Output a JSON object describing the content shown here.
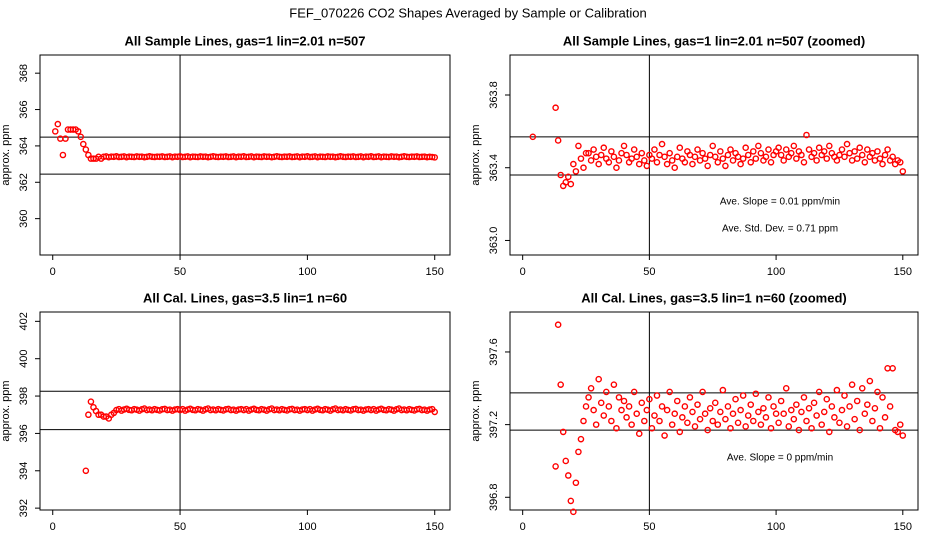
{
  "title": "FEF_070226  CO2 Shapes Averaged by Sample or Calibration",
  "chart_data": [
    {
      "type": "scatter",
      "title": "All Sample Lines, gas=1 lin=2.01 n=507",
      "ylabel": "approx. ppm",
      "color": "#ff0000",
      "xlim": [
        -5,
        156
      ],
      "ylim": [
        358,
        369
      ],
      "xticks": [
        0,
        50,
        100,
        150
      ],
      "yticks": [
        360,
        362,
        364,
        366,
        368
      ],
      "hlines": [
        364.48,
        362.45
      ],
      "vlines": [
        50
      ],
      "annotations": [],
      "x": [
        1,
        2,
        3,
        4,
        5,
        6,
        7,
        8,
        9,
        10,
        11,
        12,
        13,
        14,
        15,
        16,
        17,
        18,
        19,
        20,
        21,
        22,
        23,
        24,
        25,
        26,
        27,
        28,
        29,
        30,
        31,
        32,
        33,
        34,
        35,
        36,
        37,
        38,
        39,
        40,
        41,
        42,
        43,
        44,
        45,
        46,
        47,
        48,
        49,
        50,
        51,
        52,
        53,
        54,
        55,
        56,
        57,
        58,
        59,
        60,
        61,
        62,
        63,
        64,
        65,
        66,
        67,
        68,
        69,
        70,
        71,
        72,
        73,
        74,
        75,
        76,
        77,
        78,
        79,
        80,
        81,
        82,
        83,
        84,
        85,
        86,
        87,
        88,
        89,
        90,
        91,
        92,
        93,
        94,
        95,
        96,
        97,
        98,
        99,
        100,
        101,
        102,
        103,
        104,
        105,
        106,
        107,
        108,
        109,
        110,
        111,
        112,
        113,
        114,
        115,
        116,
        117,
        118,
        119,
        120,
        121,
        122,
        123,
        124,
        125,
        126,
        127,
        128,
        129,
        130,
        131,
        132,
        133,
        134,
        135,
        136,
        137,
        138,
        139,
        140,
        141,
        142,
        143,
        144,
        145,
        146,
        147,
        148,
        149,
        150
      ],
      "values": [
        364.8,
        365.2,
        364.4,
        363.5,
        364.4,
        364.9,
        364.9,
        364.9,
        364.9,
        364.8,
        364.5,
        364.1,
        363.8,
        363.5,
        363.3,
        363.3,
        363.3,
        363.4,
        363.3,
        363.4,
        363.42,
        363.38,
        363.41,
        363.4,
        363.43,
        363.39,
        363.4,
        363.42,
        363.38,
        363.41,
        363.4,
        363.39,
        363.42,
        363.4,
        363.41,
        363.38,
        363.4,
        363.43,
        363.4,
        363.39,
        363.41,
        363.4,
        363.42,
        363.39,
        363.4,
        363.42,
        363.38,
        363.41,
        363.4,
        363.43,
        363.39,
        363.4,
        363.42,
        363.38,
        363.41,
        363.4,
        363.39,
        363.42,
        363.4,
        363.41,
        363.38,
        363.4,
        363.43,
        363.4,
        363.39,
        363.41,
        363.4,
        363.42,
        363.39,
        363.4,
        363.42,
        363.38,
        363.41,
        363.4,
        363.43,
        363.39,
        363.4,
        363.42,
        363.38,
        363.41,
        363.4,
        363.39,
        363.42,
        363.4,
        363.41,
        363.38,
        363.4,
        363.43,
        363.4,
        363.39,
        363.41,
        363.4,
        363.42,
        363.39,
        363.4,
        363.42,
        363.38,
        363.41,
        363.4,
        363.43,
        363.39,
        363.4,
        363.42,
        363.38,
        363.41,
        363.4,
        363.39,
        363.42,
        363.4,
        363.41,
        363.38,
        363.4,
        363.43,
        363.4,
        363.39,
        363.41,
        363.4,
        363.42,
        363.39,
        363.4,
        363.42,
        363.38,
        363.41,
        363.4,
        363.43,
        363.39,
        363.4,
        363.42,
        363.38,
        363.41,
        363.4,
        363.39,
        363.42,
        363.4,
        363.41,
        363.38,
        363.4,
        363.43,
        363.4,
        363.39,
        363.41,
        363.4,
        363.42,
        363.39,
        363.4,
        363.41,
        363.38,
        363.4,
        363.39,
        363.37
      ]
    },
    {
      "type": "scatter",
      "title": "All Sample Lines, gas=1 lin=2.01 n=507 (zoomed)",
      "ylabel": "approx. ppm",
      "color": "#ff0000",
      "xlim": [
        -5,
        156
      ],
      "ylim": [
        362.92,
        364.02
      ],
      "xticks": [
        0,
        50,
        100,
        150
      ],
      "yticks": [
        {
          "value": 363.0,
          "label": "363.0"
        },
        363.4,
        363.8
      ],
      "hlines": [
        363.57,
        363.36
      ],
      "vlines": [
        50
      ],
      "annotations": [
        "Ave. Slope =  0.01  ppm/min",
        "Ave. Std. Dev. =  0.71  ppm"
      ],
      "x": [
        4,
        13,
        14,
        15,
        16,
        17,
        18,
        19,
        20,
        21,
        22,
        23,
        24,
        25,
        26,
        27,
        28,
        29,
        30,
        31,
        32,
        33,
        34,
        35,
        36,
        37,
        38,
        39,
        40,
        41,
        42,
        43,
        44,
        45,
        46,
        47,
        48,
        49,
        50,
        51,
        52,
        53,
        54,
        55,
        56,
        57,
        58,
        59,
        60,
        61,
        62,
        63,
        64,
        65,
        66,
        67,
        68,
        69,
        70,
        71,
        72,
        73,
        74,
        75,
        76,
        77,
        78,
        79,
        80,
        81,
        82,
        83,
        84,
        85,
        86,
        87,
        88,
        89,
        90,
        91,
        92,
        93,
        94,
        95,
        96,
        97,
        98,
        99,
        100,
        101,
        102,
        103,
        104,
        105,
        106,
        107,
        108,
        109,
        110,
        111,
        112,
        113,
        114,
        115,
        116,
        117,
        118,
        119,
        120,
        121,
        122,
        123,
        124,
        125,
        126,
        127,
        128,
        129,
        130,
        131,
        132,
        133,
        134,
        135,
        136,
        137,
        138,
        139,
        140,
        141,
        142,
        143,
        144,
        145,
        146,
        147,
        148,
        149,
        150
      ],
      "values": [
        363.57,
        363.73,
        363.55,
        363.36,
        363.3,
        363.32,
        363.35,
        363.31,
        363.42,
        363.38,
        363.52,
        363.45,
        363.4,
        363.48,
        363.48,
        363.44,
        363.5,
        363.46,
        363.42,
        363.47,
        363.51,
        363.45,
        363.43,
        363.49,
        363.46,
        363.4,
        363.44,
        363.48,
        363.52,
        363.47,
        363.43,
        363.45,
        363.5,
        363.46,
        363.42,
        363.48,
        363.44,
        363.41,
        363.47,
        363.45,
        363.5,
        363.43,
        363.47,
        363.53,
        363.46,
        363.42,
        363.48,
        363.44,
        363.4,
        363.46,
        363.51,
        363.45,
        363.43,
        363.49,
        363.47,
        363.42,
        363.46,
        363.5,
        363.44,
        363.48,
        363.45,
        363.41,
        363.47,
        363.52,
        363.46,
        363.43,
        363.49,
        363.45,
        363.41,
        363.47,
        363.5,
        363.44,
        363.48,
        363.46,
        363.42,
        363.45,
        363.51,
        363.47,
        363.43,
        363.49,
        363.45,
        363.52,
        363.48,
        363.44,
        363.46,
        363.5,
        363.43,
        363.47,
        363.49,
        363.51,
        363.47,
        363.44,
        363.5,
        363.46,
        363.48,
        363.52,
        363.45,
        363.49,
        363.47,
        363.43,
        363.58,
        363.5,
        363.46,
        363.48,
        363.44,
        363.51,
        363.47,
        363.49,
        363.45,
        363.52,
        363.48,
        363.46,
        363.44,
        363.47,
        363.5,
        363.46,
        363.53,
        363.48,
        363.44,
        363.49,
        363.45,
        363.51,
        363.47,
        363.43,
        363.5,
        363.46,
        363.48,
        363.44,
        363.49,
        363.45,
        363.42,
        363.47,
        363.5,
        363.44,
        363.46,
        363.42,
        363.44,
        363.43,
        363.38
      ]
    },
    {
      "type": "scatter",
      "title": "All Cal. Lines, gas=3.5 lin=1 n=60",
      "ylabel": "approx. ppm",
      "color": "#ff0000",
      "xlim": [
        -5,
        156
      ],
      "ylim": [
        391.9,
        402.5
      ],
      "xticks": [
        0,
        50,
        100,
        150
      ],
      "yticks": [
        392,
        394,
        396,
        398,
        400,
        402
      ],
      "hlines": [
        398.26,
        396.2
      ],
      "vlines": [
        50
      ],
      "annotations": [],
      "x": [
        13,
        14,
        15,
        16,
        17,
        18,
        19,
        20,
        21,
        22,
        23,
        24,
        25,
        26,
        27,
        28,
        29,
        30,
        31,
        32,
        33,
        34,
        35,
        36,
        37,
        38,
        39,
        40,
        41,
        42,
        43,
        44,
        45,
        46,
        47,
        48,
        49,
        50,
        51,
        52,
        53,
        54,
        55,
        56,
        57,
        58,
        59,
        60,
        61,
        62,
        63,
        64,
        65,
        66,
        67,
        68,
        69,
        70,
        71,
        72,
        73,
        74,
        75,
        76,
        77,
        78,
        79,
        80,
        81,
        82,
        83,
        84,
        85,
        86,
        87,
        88,
        89,
        90,
        91,
        92,
        93,
        94,
        95,
        96,
        97,
        98,
        99,
        100,
        101,
        102,
        103,
        104,
        105,
        106,
        107,
        108,
        109,
        110,
        111,
        112,
        113,
        114,
        115,
        116,
        117,
        118,
        119,
        120,
        121,
        122,
        123,
        124,
        125,
        126,
        127,
        128,
        129,
        130,
        131,
        132,
        133,
        134,
        135,
        136,
        137,
        138,
        139,
        140,
        141,
        142,
        143,
        144,
        145,
        146,
        147,
        148,
        149,
        150
      ],
      "values": [
        394.0,
        397.0,
        397.7,
        397.4,
        397.2,
        397.0,
        397.0,
        396.9,
        396.9,
        396.8,
        397.0,
        397.1,
        397.25,
        397.3,
        397.22,
        397.28,
        397.32,
        397.26,
        397.24,
        397.3,
        397.27,
        397.22,
        397.29,
        397.33,
        397.25,
        397.28,
        397.24,
        397.3,
        397.26,
        397.23,
        397.29,
        397.31,
        397.25,
        397.27,
        397.22,
        397.28,
        397.3,
        397.25,
        397.3,
        397.22,
        397.28,
        397.32,
        397.26,
        397.24,
        397.3,
        397.27,
        397.22,
        397.29,
        397.33,
        397.25,
        397.28,
        397.24,
        397.3,
        397.26,
        397.23,
        397.29,
        397.31,
        397.25,
        397.27,
        397.22,
        397.28,
        397.3,
        397.25,
        397.3,
        397.22,
        397.28,
        397.32,
        397.26,
        397.24,
        397.3,
        397.27,
        397.22,
        397.29,
        397.33,
        397.25,
        397.28,
        397.24,
        397.3,
        397.26,
        397.23,
        397.29,
        397.31,
        397.25,
        397.27,
        397.22,
        397.28,
        397.3,
        397.25,
        397.3,
        397.22,
        397.28,
        397.32,
        397.26,
        397.24,
        397.3,
        397.27,
        397.22,
        397.29,
        397.33,
        397.25,
        397.28,
        397.24,
        397.3,
        397.26,
        397.23,
        397.29,
        397.31,
        397.25,
        397.27,
        397.22,
        397.28,
        397.3,
        397.25,
        397.3,
        397.22,
        397.28,
        397.32,
        397.26,
        397.24,
        397.3,
        397.27,
        397.22,
        397.29,
        397.33,
        397.25,
        397.28,
        397.24,
        397.3,
        397.26,
        397.23,
        397.29,
        397.31,
        397.25,
        397.27,
        397.22,
        397.28,
        397.3,
        397.15
      ]
    },
    {
      "type": "scatter",
      "title": "All Cal. Lines, gas=3.5 lin=1 n=60 (zoomed)",
      "ylabel": "approx. ppm",
      "color": "#ff0000",
      "xlim": [
        -5,
        156
      ],
      "ylim": [
        396.73,
        397.82
      ],
      "xticks": [
        0,
        50,
        100,
        150
      ],
      "yticks": [
        396.8,
        397.2,
        397.6
      ],
      "hlines": [
        397.375,
        397.17
      ],
      "vlines": [
        50
      ],
      "annotations": [
        "Ave. Slope =  0  ppm/min"
      ],
      "x": [
        13,
        14,
        15,
        16,
        17,
        18,
        19,
        20,
        21,
        22,
        23,
        24,
        25,
        26,
        27,
        28,
        29,
        30,
        31,
        32,
        33,
        34,
        35,
        36,
        37,
        38,
        39,
        40,
        41,
        42,
        43,
        44,
        45,
        46,
        47,
        48,
        49,
        50,
        51,
        52,
        53,
        54,
        55,
        56,
        57,
        58,
        59,
        60,
        61,
        62,
        63,
        64,
        65,
        66,
        67,
        68,
        69,
        70,
        71,
        72,
        73,
        74,
        75,
        76,
        77,
        78,
        79,
        80,
        81,
        82,
        83,
        84,
        85,
        86,
        87,
        88,
        89,
        90,
        91,
        92,
        93,
        94,
        95,
        96,
        97,
        98,
        99,
        100,
        101,
        102,
        103,
        104,
        105,
        106,
        107,
        108,
        109,
        110,
        111,
        112,
        113,
        114,
        115,
        116,
        117,
        118,
        119,
        120,
        121,
        122,
        123,
        124,
        125,
        126,
        127,
        128,
        129,
        130,
        131,
        132,
        133,
        134,
        135,
        136,
        137,
        138,
        139,
        140,
        141,
        142,
        143,
        144,
        145,
        146,
        147,
        148,
        149,
        150
      ],
      "values": [
        396.97,
        397.75,
        397.42,
        397.16,
        397.0,
        396.92,
        396.78,
        396.72,
        396.88,
        397.05,
        397.12,
        397.22,
        397.3,
        397.35,
        397.4,
        397.28,
        397.2,
        397.45,
        397.32,
        397.25,
        397.38,
        397.3,
        397.22,
        397.42,
        397.18,
        397.35,
        397.28,
        397.33,
        397.24,
        397.3,
        397.2,
        397.38,
        397.26,
        397.15,
        397.32,
        397.22,
        397.28,
        397.34,
        397.18,
        397.25,
        397.36,
        397.22,
        397.3,
        397.14,
        397.28,
        397.38,
        397.2,
        397.26,
        397.33,
        397.16,
        397.24,
        397.3,
        397.21,
        397.35,
        397.27,
        397.19,
        397.31,
        397.23,
        397.38,
        397.26,
        397.17,
        397.29,
        397.22,
        397.32,
        397.2,
        397.27,
        397.39,
        397.23,
        397.3,
        397.18,
        397.26,
        397.34,
        397.21,
        397.28,
        397.36,
        397.19,
        397.25,
        397.31,
        397.22,
        397.37,
        397.27,
        397.2,
        397.29,
        397.24,
        397.35,
        397.18,
        397.3,
        397.26,
        397.21,
        397.33,
        397.26,
        397.4,
        397.19,
        397.28,
        397.23,
        397.31,
        397.17,
        397.27,
        397.35,
        397.22,
        397.29,
        397.18,
        397.32,
        397.25,
        397.38,
        397.2,
        397.27,
        397.34,
        397.16,
        397.3,
        397.24,
        397.39,
        397.21,
        397.28,
        397.36,
        397.19,
        397.3,
        397.42,
        397.23,
        397.33,
        397.17,
        397.4,
        397.26,
        397.31,
        397.44,
        397.22,
        397.29,
        397.38,
        397.18,
        397.35,
        397.24,
        397.51,
        397.3,
        397.51,
        397.17,
        397.16,
        397.2,
        397.14
      ]
    }
  ]
}
